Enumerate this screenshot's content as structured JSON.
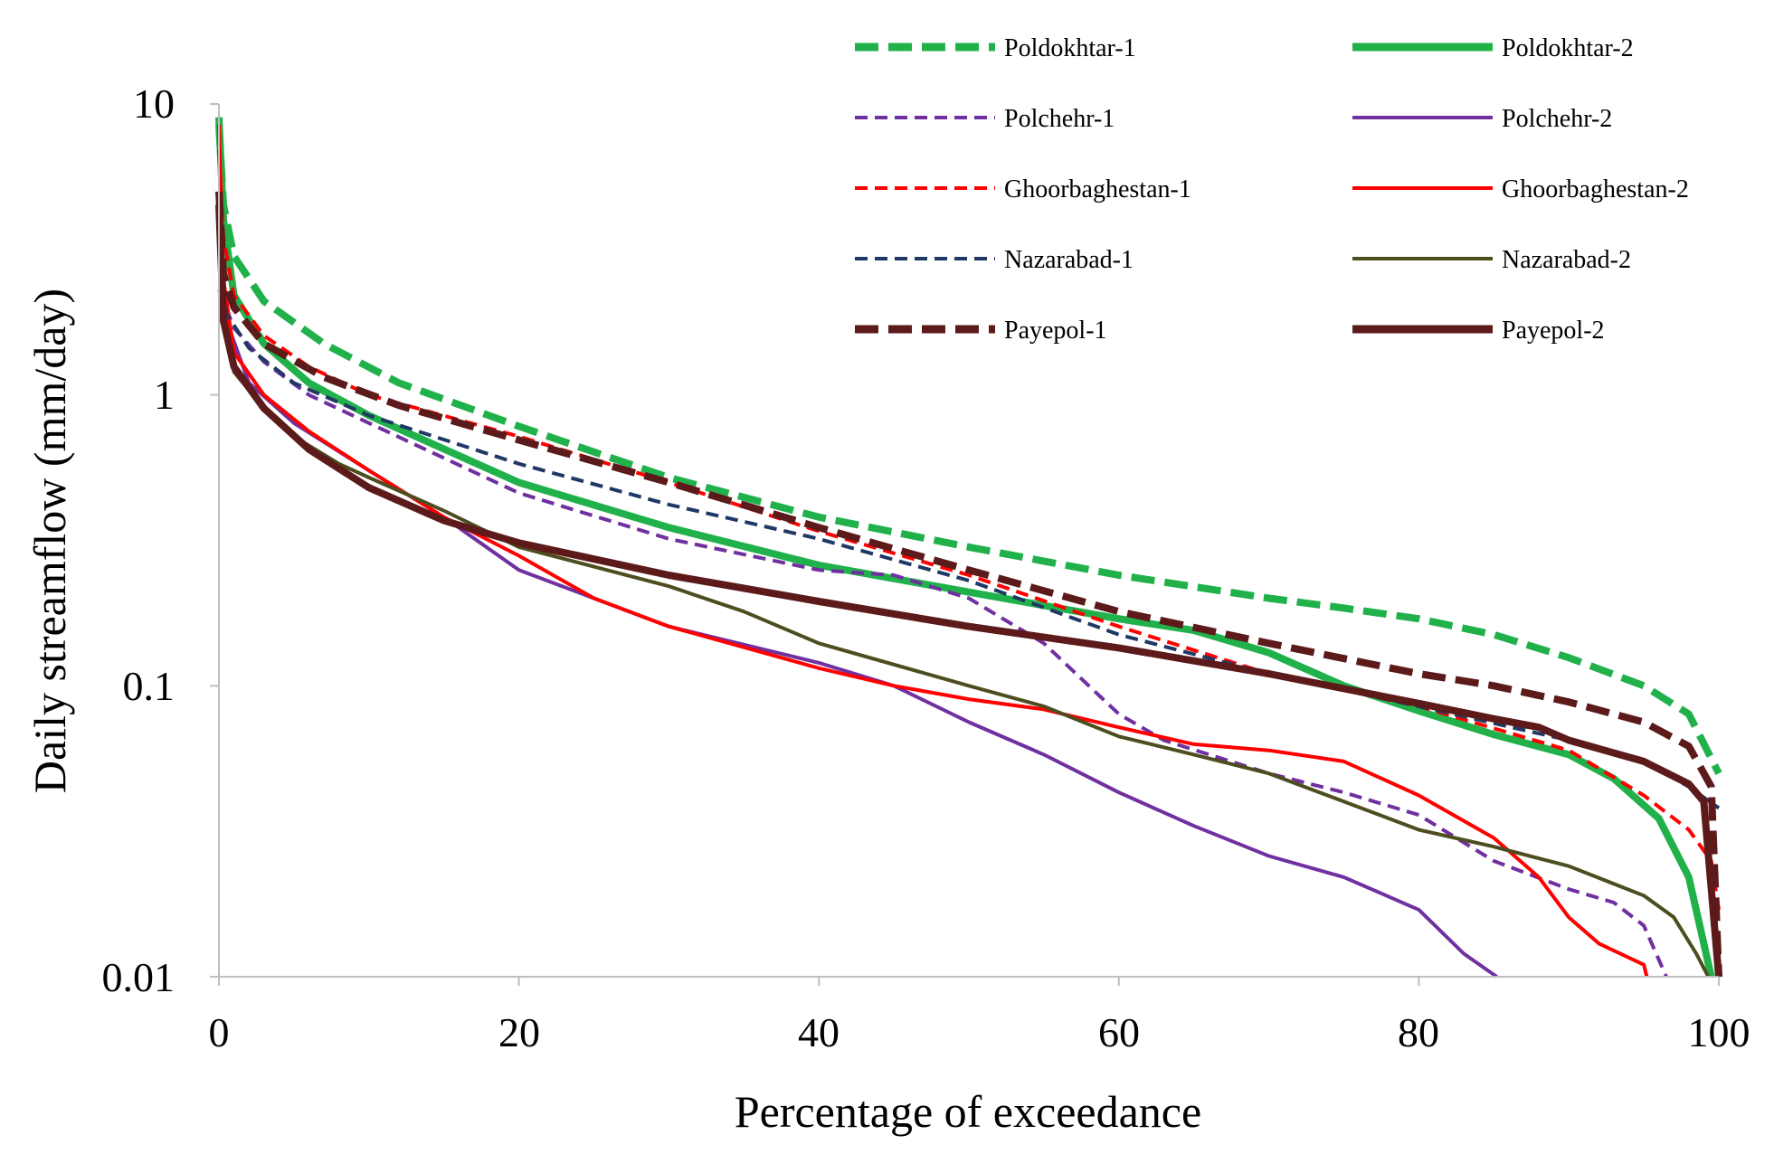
{
  "chart_data": {
    "type": "line",
    "title": "",
    "xlabel": "Percentage of exceedance",
    "ylabel": "Daily streamflow (mm/day)",
    "xlim": [
      0,
      100
    ],
    "ylim": [
      0.01,
      10
    ],
    "yscale": "log",
    "grid": false,
    "legend_position": "top-right",
    "x_ticks": [
      "0",
      "20",
      "40",
      "60",
      "80",
      "100"
    ],
    "y_ticks": [
      "0.01",
      "0.1",
      "1",
      "10"
    ],
    "series": [
      {
        "name": "Poldokhtar-1",
        "color": "#21b14b",
        "style": "dashed",
        "weight": "thick",
        "points": [
          [
            0,
            8.5
          ],
          [
            0.3,
            4.5
          ],
          [
            1,
            3.0
          ],
          [
            3,
            2.1
          ],
          [
            7,
            1.5
          ],
          [
            12,
            1.1
          ],
          [
            20,
            0.78
          ],
          [
            30,
            0.52
          ],
          [
            40,
            0.38
          ],
          [
            50,
            0.3
          ],
          [
            60,
            0.24
          ],
          [
            70,
            0.2
          ],
          [
            75,
            0.185
          ],
          [
            80,
            0.17
          ],
          [
            85,
            0.15
          ],
          [
            90,
            0.125
          ],
          [
            95,
            0.1
          ],
          [
            98,
            0.08
          ],
          [
            100,
            0.05
          ]
        ]
      },
      {
        "name": "Poldokhtar-2",
        "color": "#21b14b",
        "style": "solid",
        "weight": "thick",
        "points": [
          [
            0,
            9.0
          ],
          [
            0.3,
            4.0
          ],
          [
            1,
            2.2
          ],
          [
            3,
            1.5
          ],
          [
            6,
            1.1
          ],
          [
            10,
            0.85
          ],
          [
            20,
            0.5
          ],
          [
            30,
            0.35
          ],
          [
            40,
            0.26
          ],
          [
            50,
            0.21
          ],
          [
            60,
            0.17
          ],
          [
            65,
            0.155
          ],
          [
            70,
            0.13
          ],
          [
            75,
            0.1
          ],
          [
            80,
            0.082
          ],
          [
            85,
            0.068
          ],
          [
            90,
            0.058
          ],
          [
            93,
            0.048
          ],
          [
            96,
            0.035
          ],
          [
            98,
            0.022
          ],
          [
            99.5,
            0.01
          ]
        ]
      },
      {
        "name": "Polchehr-1",
        "color": "#7030a0",
        "style": "dashed",
        "weight": "thin",
        "points": [
          [
            0,
            2.3
          ],
          [
            1,
            1.7
          ],
          [
            3,
            1.3
          ],
          [
            6,
            1.0
          ],
          [
            10,
            0.8
          ],
          [
            20,
            0.46
          ],
          [
            30,
            0.32
          ],
          [
            40,
            0.25
          ],
          [
            45,
            0.24
          ],
          [
            50,
            0.2
          ],
          [
            55,
            0.14
          ],
          [
            58,
            0.1
          ],
          [
            60,
            0.08
          ],
          [
            63,
            0.065
          ],
          [
            70,
            0.05
          ],
          [
            75,
            0.043
          ],
          [
            80,
            0.036
          ],
          [
            85,
            0.025
          ],
          [
            90,
            0.02
          ],
          [
            93,
            0.018
          ],
          [
            95,
            0.015
          ],
          [
            96.5,
            0.01
          ]
        ]
      },
      {
        "name": "Polchehr-2",
        "color": "#7030a0",
        "style": "solid",
        "weight": "thin",
        "points": [
          [
            0,
            4.7
          ],
          [
            0.5,
            1.8
          ],
          [
            2,
            1.1
          ],
          [
            5,
            0.8
          ],
          [
            10,
            0.55
          ],
          [
            15,
            0.38
          ],
          [
            20,
            0.25
          ],
          [
            25,
            0.2
          ],
          [
            30,
            0.16
          ],
          [
            40,
            0.12
          ],
          [
            45,
            0.1
          ],
          [
            50,
            0.075
          ],
          [
            55,
            0.058
          ],
          [
            60,
            0.043
          ],
          [
            65,
            0.033
          ],
          [
            70,
            0.026
          ],
          [
            75,
            0.022
          ],
          [
            80,
            0.017
          ],
          [
            83,
            0.012
          ],
          [
            85.2,
            0.01
          ]
        ]
      },
      {
        "name": "Ghoorbaghestan-1",
        "color": "#ff0000",
        "style": "dashed",
        "weight": "thin",
        "points": [
          [
            0,
            7.0
          ],
          [
            0.3,
            3.5
          ],
          [
            1,
            2.2
          ],
          [
            3,
            1.6
          ],
          [
            6,
            1.25
          ],
          [
            10,
            1.0
          ],
          [
            20,
            0.72
          ],
          [
            30,
            0.5
          ],
          [
            40,
            0.34
          ],
          [
            50,
            0.24
          ],
          [
            60,
            0.16
          ],
          [
            70,
            0.11
          ],
          [
            80,
            0.085
          ],
          [
            90,
            0.06
          ],
          [
            95,
            0.042
          ],
          [
            98,
            0.032
          ],
          [
            99.5,
            0.025
          ],
          [
            100,
            0.017
          ]
        ]
      },
      {
        "name": "Ghoorbaghestan-2",
        "color": "#ff0000",
        "style": "solid",
        "weight": "thin",
        "points": [
          [
            0,
            8.5
          ],
          [
            0.3,
            2.5
          ],
          [
            1,
            1.4
          ],
          [
            3,
            1.0
          ],
          [
            6,
            0.75
          ],
          [
            10,
            0.55
          ],
          [
            15,
            0.38
          ],
          [
            20,
            0.28
          ],
          [
            25,
            0.2
          ],
          [
            30,
            0.16
          ],
          [
            40,
            0.115
          ],
          [
            45,
            0.1
          ],
          [
            50,
            0.09
          ],
          [
            55,
            0.083
          ],
          [
            60,
            0.072
          ],
          [
            65,
            0.063
          ],
          [
            70,
            0.06
          ],
          [
            75,
            0.055
          ],
          [
            80,
            0.042
          ],
          [
            85,
            0.03
          ],
          [
            88,
            0.022
          ],
          [
            90,
            0.016
          ],
          [
            92,
            0.013
          ],
          [
            95,
            0.011
          ],
          [
            95.2,
            0.01
          ]
        ]
      },
      {
        "name": "Nazarabad-1",
        "color": "#1f3864",
        "style": "dashed",
        "weight": "thin",
        "points": [
          [
            0,
            3.2
          ],
          [
            0.5,
            1.9
          ],
          [
            2,
            1.45
          ],
          [
            5,
            1.1
          ],
          [
            10,
            0.85
          ],
          [
            20,
            0.58
          ],
          [
            30,
            0.42
          ],
          [
            40,
            0.32
          ],
          [
            50,
            0.23
          ],
          [
            60,
            0.15
          ],
          [
            70,
            0.11
          ],
          [
            80,
            0.085
          ],
          [
            90,
            0.065
          ],
          [
            95,
            0.055
          ],
          [
            98,
            0.045
          ],
          [
            100,
            0.038
          ]
        ]
      },
      {
        "name": "Nazarabad-2",
        "color": "#4d4d1f",
        "style": "solid",
        "weight": "thin",
        "points": [
          [
            0,
            5.0
          ],
          [
            0.3,
            1.9
          ],
          [
            1,
            1.2
          ],
          [
            3,
            0.9
          ],
          [
            5,
            0.72
          ],
          [
            8,
            0.58
          ],
          [
            10,
            0.52
          ],
          [
            15,
            0.4
          ],
          [
            20,
            0.3
          ],
          [
            30,
            0.22
          ],
          [
            35,
            0.18
          ],
          [
            40,
            0.14
          ],
          [
            50,
            0.1
          ],
          [
            55,
            0.085
          ],
          [
            60,
            0.067
          ],
          [
            65,
            0.058
          ],
          [
            70,
            0.05
          ],
          [
            75,
            0.04
          ],
          [
            80,
            0.032
          ],
          [
            85,
            0.028
          ],
          [
            90,
            0.024
          ],
          [
            95,
            0.019
          ],
          [
            97,
            0.016
          ],
          [
            98.5,
            0.012
          ],
          [
            99.3,
            0.01
          ]
        ]
      },
      {
        "name": "Payepol-1",
        "color": "#5c1a1a",
        "style": "dashed",
        "weight": "thick",
        "points": [
          [
            0,
            5.0
          ],
          [
            0.3,
            2.6
          ],
          [
            1,
            2.0
          ],
          [
            3,
            1.5
          ],
          [
            7,
            1.15
          ],
          [
            12,
            0.92
          ],
          [
            20,
            0.7
          ],
          [
            30,
            0.5
          ],
          [
            40,
            0.35
          ],
          [
            50,
            0.25
          ],
          [
            60,
            0.18
          ],
          [
            70,
            0.14
          ],
          [
            80,
            0.11
          ],
          [
            85,
            0.1
          ],
          [
            90,
            0.088
          ],
          [
            95,
            0.075
          ],
          [
            98,
            0.062
          ],
          [
            99.5,
            0.045
          ],
          [
            100,
            0.01
          ]
        ]
      },
      {
        "name": "Payepol-2",
        "color": "#5c1a1a",
        "style": "solid",
        "weight": "thick",
        "points": [
          [
            0,
            4.5
          ],
          [
            0.3,
            1.8
          ],
          [
            1,
            1.25
          ],
          [
            3,
            0.9
          ],
          [
            6,
            0.65
          ],
          [
            10,
            0.48
          ],
          [
            15,
            0.37
          ],
          [
            20,
            0.31
          ],
          [
            30,
            0.24
          ],
          [
            40,
            0.195
          ],
          [
            50,
            0.16
          ],
          [
            60,
            0.135
          ],
          [
            70,
            0.11
          ],
          [
            80,
            0.087
          ],
          [
            85,
            0.077
          ],
          [
            88,
            0.072
          ],
          [
            90,
            0.065
          ],
          [
            95,
            0.055
          ],
          [
            98,
            0.046
          ],
          [
            99,
            0.04
          ],
          [
            99.5,
            0.02
          ],
          [
            100,
            0.01
          ]
        ]
      }
    ]
  }
}
